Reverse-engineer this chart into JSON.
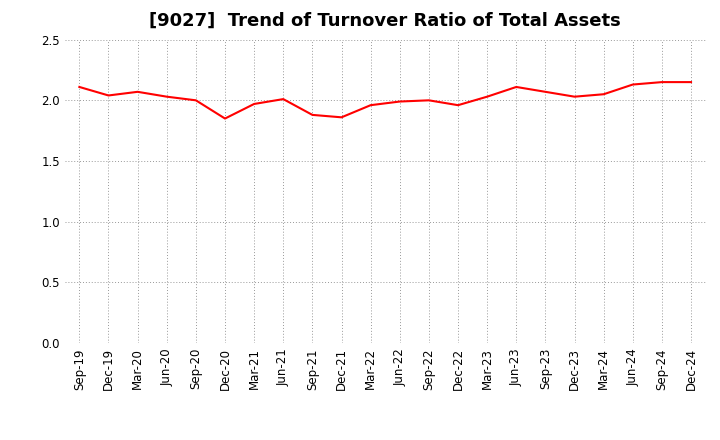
{
  "title": "[9027]  Trend of Turnover Ratio of Total Assets",
  "x_labels": [
    "Sep-19",
    "Dec-19",
    "Mar-20",
    "Jun-20",
    "Sep-20",
    "Dec-20",
    "Mar-21",
    "Jun-21",
    "Sep-21",
    "Dec-21",
    "Mar-22",
    "Jun-22",
    "Sep-22",
    "Dec-22",
    "Mar-23",
    "Jun-23",
    "Sep-23",
    "Dec-23",
    "Mar-24",
    "Jun-24",
    "Sep-24",
    "Dec-24"
  ],
  "values": [
    2.11,
    2.04,
    2.07,
    2.03,
    2.0,
    1.85,
    1.97,
    2.01,
    1.88,
    1.86,
    1.96,
    1.99,
    2.0,
    1.96,
    2.03,
    2.11,
    2.07,
    2.03,
    2.05,
    2.13,
    2.15,
    2.15
  ],
  "ylim": [
    0.0,
    2.5
  ],
  "yticks": [
    0.0,
    0.5,
    1.0,
    1.5,
    2.0,
    2.5
  ],
  "line_color": "#ff0000",
  "line_width": 1.5,
  "background_color": "#ffffff",
  "grid_color": "#999999",
  "title_fontsize": 13,
  "tick_fontsize": 8.5
}
